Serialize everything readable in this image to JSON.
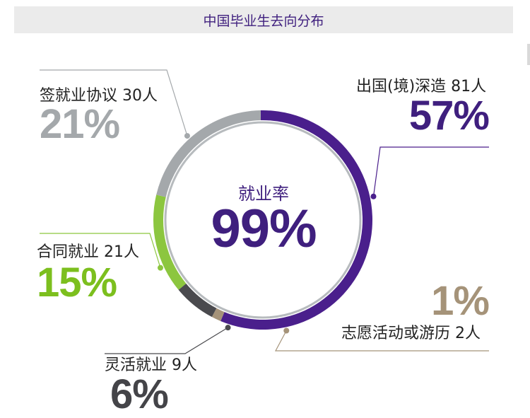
{
  "title": "中国毕业生去向分布",
  "chart_data": {
    "type": "pie",
    "title": "中国毕业生去向分布",
    "center": {
      "label": "就业率",
      "value": "99%"
    },
    "slices": [
      {
        "key": "abroad",
        "name": "出国(境)深造",
        "count": 81,
        "count_label": "出国(境)深造 81人",
        "percent": 57,
        "percent_label": "57%",
        "color": "#4a1f8c",
        "text_color": "#3f1f7e"
      },
      {
        "key": "other",
        "name": "志愿活动或游历",
        "count": 2,
        "count_label": "志愿活动或游历 2人",
        "percent": 1,
        "percent_label": "1%",
        "color": "#a59379",
        "text_color": "#a59379"
      },
      {
        "key": "flexible",
        "name": "灵活就业",
        "count": 9,
        "count_label": "灵活就业 9人",
        "percent": 6,
        "percent_label": "6%",
        "color": "#4a4a4e",
        "text_color": "#444448"
      },
      {
        "key": "contract",
        "name": "合同就业",
        "count": 21,
        "count_label": "合同就业 21人",
        "percent": 15,
        "percent_label": "15%",
        "color": "#8cc63f",
        "text_color": "#7cbf1e"
      },
      {
        "key": "agreement",
        "name": "签就业协议",
        "count": 30,
        "count_label": "签就业协议 30人",
        "percent": 21,
        "percent_label": "21%",
        "color": "#a4a8ab",
        "text_color": "#a4a8ab"
      }
    ]
  }
}
